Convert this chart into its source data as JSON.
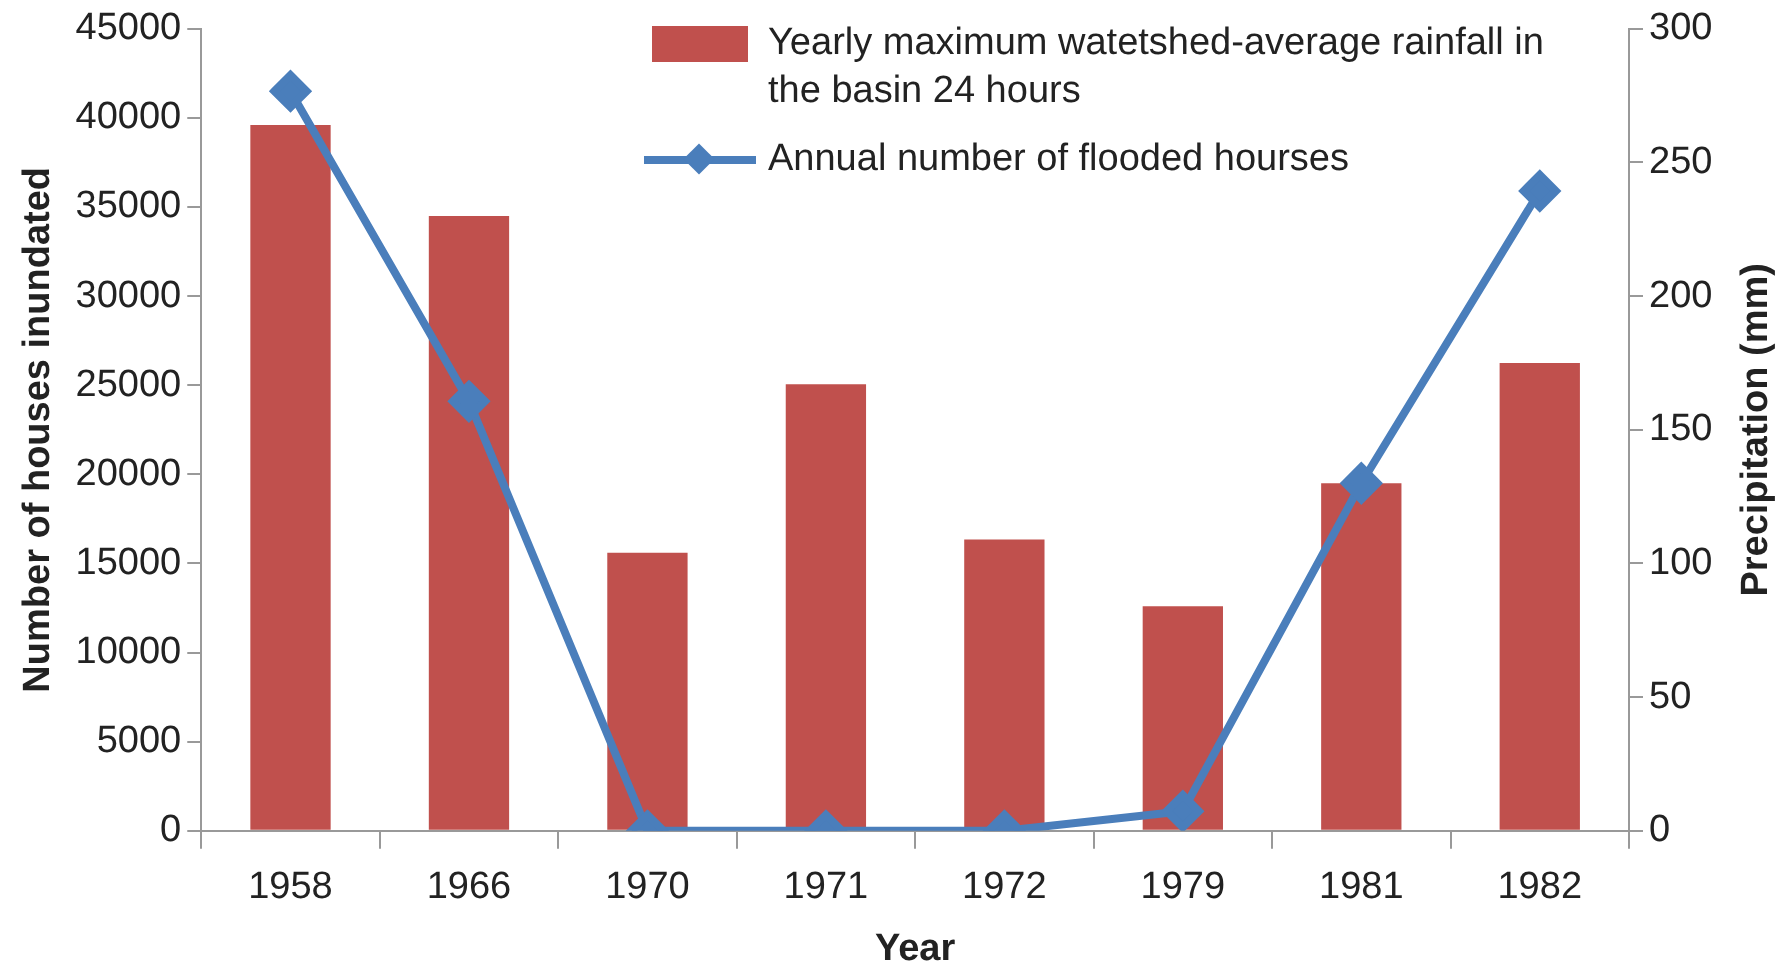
{
  "chart_data": {
    "type": "bar",
    "xlabel": "Year",
    "ylabel": "Number of houses inundated",
    "y2label": "Precipitation (mm)",
    "categories": [
      "1958",
      "1966",
      "1970",
      "1971",
      "1972",
      "1979",
      "1981",
      "1982"
    ],
    "series": [
      {
        "name": "Yearly maximum watetshed-average rainfall in the basin 24 hours",
        "axis": "y2",
        "color": "#c0504d",
        "values": [
          264,
          230,
          104,
          167,
          109,
          84,
          130,
          175
        ]
      },
      {
        "name": "Annual number of flooded hourses",
        "type": "line",
        "axis": "y",
        "color": "#4a7ebb",
        "marker": "diamond",
        "values": [
          41500,
          24100,
          0,
          0,
          0,
          1100,
          19500,
          35900
        ]
      }
    ],
    "ylim": [
      0,
      45000
    ],
    "yticks": [
      0,
      5000,
      10000,
      15000,
      20000,
      25000,
      30000,
      35000,
      40000,
      45000
    ],
    "y2lim": [
      0,
      300
    ],
    "y2ticks": [
      0,
      50,
      100,
      150,
      200,
      250,
      300
    ],
    "grid": false,
    "legend": "top right"
  }
}
